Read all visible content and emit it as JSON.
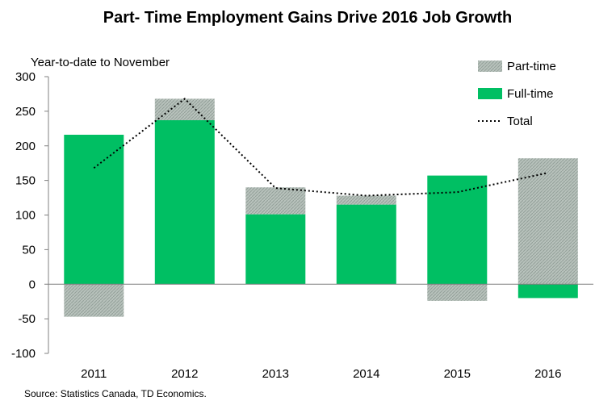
{
  "chart_data": {
    "type": "bar",
    "title": "Part- Time Employment Gains Drive 2016 Job Growth",
    "subtitle": "Year-to-date to November",
    "source": "Source: Statistics Canada, TD Economics.",
    "categories": [
      "2011",
      "2012",
      "2013",
      "2014",
      "2015",
      "2016"
    ],
    "ylim": [
      -100,
      300
    ],
    "yticks": [
      300,
      250,
      200,
      150,
      100,
      50,
      0,
      -50,
      -100
    ],
    "stacked": true,
    "series": [
      {
        "name": "Full-time",
        "kind": "bar",
        "color": "#00bf63",
        "values": [
          216,
          237,
          101,
          115,
          157,
          -20
        ]
      },
      {
        "name": "Part-time",
        "kind": "bar",
        "color": "#a7b2ab",
        "values": [
          -47,
          31,
          39,
          13,
          -24,
          182
        ]
      },
      {
        "name": "Total",
        "kind": "line",
        "color": "#000000",
        "style": "dotted",
        "values": [
          168,
          268,
          139,
          128,
          133,
          161
        ]
      }
    ],
    "legend": {
      "position": "top-right",
      "order": [
        "Part-time",
        "Full-time",
        "Total"
      ]
    },
    "grid": false
  }
}
